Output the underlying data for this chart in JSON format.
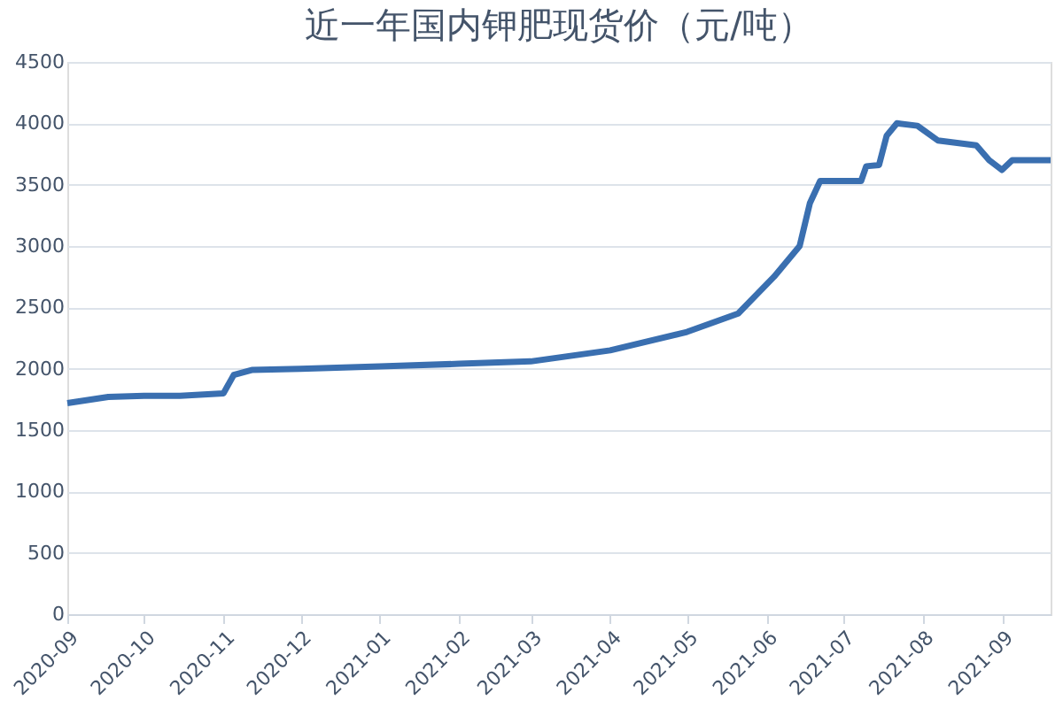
{
  "chart_data": {
    "type": "line",
    "title": "近一年国内钾肥现货价（元/吨）",
    "x": [
      "2020-09-01",
      "2020-09-17",
      "2020-10-01",
      "2020-10-15",
      "2020-11-01",
      "2020-11-05",
      "2020-11-12",
      "2020-12-01",
      "2021-01-01",
      "2021-02-01",
      "2021-03-01",
      "2021-04-01",
      "2021-05-01",
      "2021-05-21",
      "2021-06-04",
      "2021-06-14",
      "2021-06-18",
      "2021-06-22",
      "2021-07-08",
      "2021-07-10",
      "2021-07-15",
      "2021-07-18",
      "2021-07-22",
      "2021-07-30",
      "2021-08-07",
      "2021-08-22",
      "2021-08-27",
      "2021-09-01",
      "2021-09-05",
      "2021-09-20"
    ],
    "series": [
      {
        "color": "#3a6fb0",
        "values": [
          1720,
          1770,
          1780,
          1780,
          1800,
          1950,
          1990,
          2000,
          2020,
          2040,
          2060,
          2150,
          2300,
          2450,
          2750,
          3000,
          3350,
          3530,
          3530,
          3650,
          3660,
          3900,
          4000,
          3980,
          3860,
          3820,
          3700,
          3620,
          3700,
          3700
        ]
      }
    ],
    "xlim": [
      "2020-09-01",
      "2021-09-20"
    ],
    "xticks": [
      "2020-09",
      "2020-10",
      "2020-11",
      "2020-12",
      "2021-01",
      "2021-02",
      "2021-03",
      "2021-04",
      "2021-05",
      "2021-06",
      "2021-07",
      "2021-08",
      "2021-09"
    ],
    "ylim": [
      0,
      4500
    ],
    "yticks": [
      0,
      500,
      1000,
      1500,
      2000,
      2500,
      3000,
      3500,
      4000,
      4500
    ],
    "grid": "y",
    "legend": false,
    "marker": "none",
    "line_style": "solid"
  }
}
